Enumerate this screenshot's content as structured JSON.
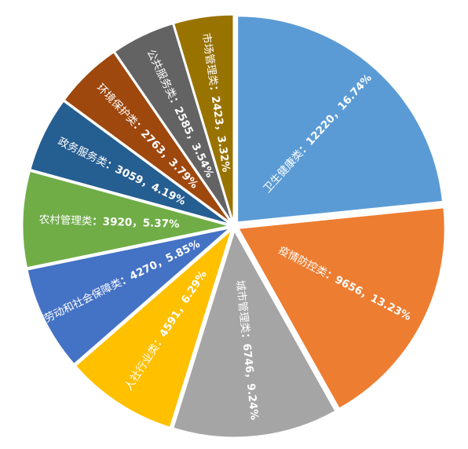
{
  "chart_data": {
    "type": "pie",
    "categories": [
      "卫生健康类",
      "疫情防控类",
      "城市管理类",
      "人社行业类",
      "劳动和社会保障类",
      "农村管理类",
      "政务服务类",
      "环境保护类",
      "公共服务类",
      "市场管理类"
    ],
    "values": [
      12220,
      9656,
      6746,
      4591,
      4270,
      3920,
      3059,
      2763,
      2585,
      2423
    ],
    "value_labels": [
      "：12220，16.74%",
      "：9656，13.23%",
      "：6746，9.24%",
      "：4591，6.29%",
      "：4270，5.85%",
      "：3920，5.37%",
      "：3059，4.19%",
      "：2763，3.79%",
      "：2585，3.54%",
      "：2423，3.32%"
    ],
    "colors": [
      "#5b9bd5",
      "#ed7d31",
      "#a5a5a5",
      "#ffc000",
      "#4472c4",
      "#70ad47",
      "#255e91",
      "#9e480e",
      "#636363",
      "#997300"
    ]
  }
}
